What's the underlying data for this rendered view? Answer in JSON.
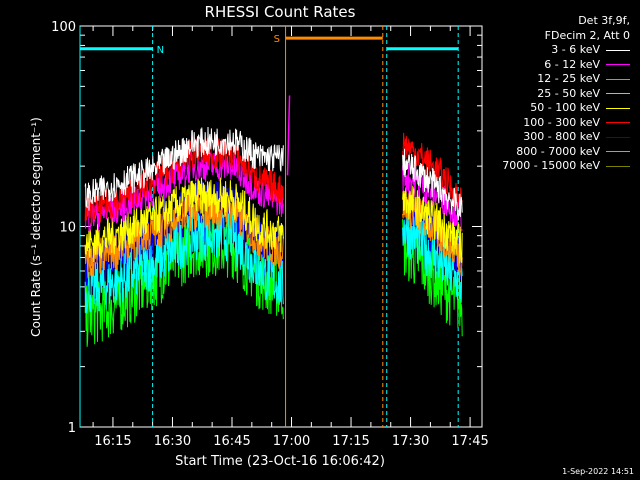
{
  "chart_data": {
    "type": "line",
    "title": "RHESSI Count Rates",
    "xlabel": "Start Time (23-Oct-16 16:06:42)",
    "ylabel": "Count Rate (s⁻¹ detector segment⁻¹)",
    "yscale": "log",
    "ylim": [
      1,
      100
    ],
    "y_ticks": [
      1,
      10,
      100
    ],
    "y_tick_labels": [
      "1",
      "10",
      "100"
    ],
    "xlim": [
      "16:06:42",
      "17:48:00"
    ],
    "x_tick_labels": [
      "16:15",
      "16:30",
      "16:45",
      "17:00",
      "17:15",
      "17:30",
      "17:45"
    ],
    "x_tick_values": [
      "16:15",
      "16:30",
      "16:45",
      "17:00",
      "17:15",
      "17:30",
      "17:45"
    ],
    "grid": false,
    "legend_position": "top-right",
    "legend_header": [
      "Det 3f,9f,",
      "FDecim 2, Att 0"
    ],
    "series": [
      {
        "name": "3 - 6 keV",
        "color": "#ffffff",
        "x": [
          "16:08",
          "16:15",
          "16:25",
          "16:35",
          "16:45",
          "16:52",
          "16:58",
          "17:28",
          "17:33",
          "17:38",
          "17:43"
        ],
        "values": [
          14,
          16,
          19,
          26,
          27,
          22,
          22,
          21,
          18,
          15,
          12
        ]
      },
      {
        "name": "6 - 12 keV",
        "color": "#ff00ff",
        "x": [
          "16:08",
          "16:15",
          "16:25",
          "16:35",
          "16:45",
          "16:52",
          "16:58",
          "17:28",
          "17:33",
          "17:38",
          "17:43"
        ],
        "values": [
          11,
          12,
          15,
          20,
          20,
          15,
          13,
          18,
          16,
          14,
          11
        ]
      },
      {
        "name": "12 - 25 keV",
        "color": "#00ff00",
        "x": [
          "16:08",
          "16:15",
          "16:25",
          "16:35",
          "16:45",
          "16:52",
          "16:58",
          "17:28",
          "17:33",
          "17:38",
          "17:43"
        ],
        "values": [
          3.5,
          4,
          5.5,
          8,
          8,
          5.5,
          4.8,
          8,
          6.5,
          5,
          4
        ]
      },
      {
        "name": "25 - 50 keV",
        "color": "#00ffff",
        "x": [
          "16:08",
          "16:15",
          "16:25",
          "16:35",
          "16:45",
          "16:52",
          "16:58",
          "17:28",
          "17:33",
          "17:38",
          "17:43"
        ],
        "values": [
          4.8,
          5.2,
          6.5,
          9,
          9,
          6,
          5,
          10,
          8,
          6.5,
          5
        ]
      },
      {
        "name": "50 - 100 keV",
        "color": "#ffff00",
        "x": [
          "16:08",
          "16:15",
          "16:25",
          "16:35",
          "16:45",
          "16:52",
          "16:58",
          "17:28",
          "17:33",
          "17:38",
          "17:43"
        ],
        "values": [
          8,
          9,
          11,
          14,
          14,
          10,
          9,
          14,
          12,
          10,
          8
        ]
      },
      {
        "name": "100 - 300 keV",
        "color": "#ff0000",
        "x": [
          "16:08",
          "16:15",
          "16:25",
          "16:35",
          "16:45",
          "16:52",
          "16:58",
          "17:28",
          "17:33",
          "17:38",
          "17:43"
        ],
        "values": [
          12,
          13,
          17,
          23,
          23,
          17,
          15,
          26,
          22,
          18,
          13
        ]
      },
      {
        "name": "300 - 800 keV",
        "color": "#0000ff",
        "x": [
          "16:08",
          "16:15",
          "16:25",
          "16:35",
          "16:45",
          "16:52",
          "16:58",
          "17:28",
          "17:33",
          "17:38",
          "17:43"
        ],
        "values": [
          6,
          7,
          9,
          12,
          12,
          8,
          7,
          12,
          10,
          8.5,
          7
        ]
      },
      {
        "name": "800 - 7000 keV",
        "color": "#ff8c00",
        "x": [
          "16:08",
          "16:15",
          "16:25",
          "16:35",
          "16:45",
          "16:52",
          "16:58",
          "17:28",
          "17:33",
          "17:38",
          "17:43"
        ],
        "values": [
          6.5,
          7.5,
          9.5,
          12,
          12,
          8.5,
          7.5,
          13,
          11,
          9,
          7
        ]
      },
      {
        "name": "7000 - 15000 keV",
        "color": "#808000",
        "x": [],
        "values": []
      }
    ],
    "annotations": [
      {
        "label": "N",
        "kind": "night",
        "color": "#00ffff",
        "x_start": "16:06:42",
        "x_end": "16:25:00",
        "level": 77
      },
      {
        "label": "S",
        "kind": "saa",
        "color": "#ff8c00",
        "x_start": "16:58:30",
        "x_end": "17:23:00",
        "level": 87
      },
      {
        "label": "",
        "kind": "night",
        "color": "#00ffff",
        "x_start": "17:24:00",
        "x_end": "17:42:00",
        "level": 77
      }
    ],
    "spike": {
      "x": "16:59",
      "value": 45
    }
  },
  "footer": {
    "timestamp": "1-Sep-2022 14:51"
  }
}
